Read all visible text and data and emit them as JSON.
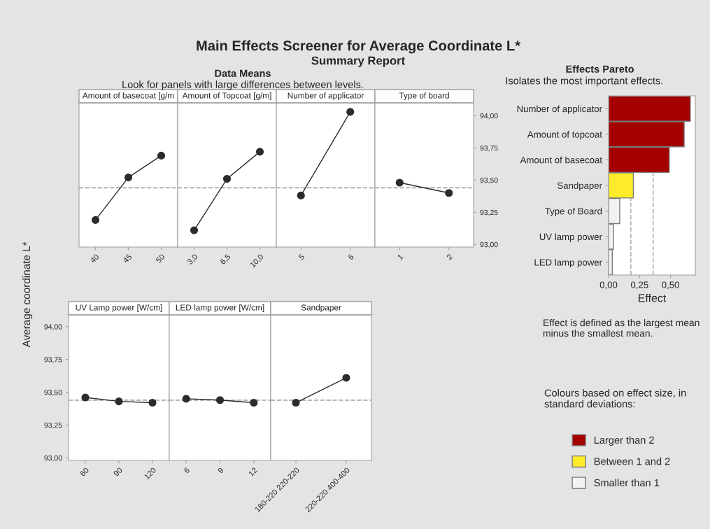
{
  "chart_data": [
    {
      "type": "line",
      "title": "Amount of basecoat [g/m",
      "annotations": [
        "Main Effects Screener for Average Coordinate L*",
        "Summary Report",
        "Data Means",
        "Look for panels with large differences between levels."
      ],
      "categories": [
        "40",
        "45",
        "50"
      ],
      "series": [
        {
          "color": "#2b2b2b",
          "values": [
            93.19,
            93.52,
            93.69
          ]
        }
      ],
      "ylim": [
        92.98,
        94.1
      ],
      "tick_labels": "x",
      "marker": "circle",
      "ref_lines": [
        {
          "axis": "y",
          "value": 93.44,
          "color": "#a6a6a6",
          "line_style": "dashed"
        }
      ]
    },
    {
      "type": "line",
      "title": "Amount of Topcoat [g/m]",
      "categories": [
        "3,0",
        "6,5",
        "10,0"
      ],
      "series": [
        {
          "color": "#2b2b2b",
          "values": [
            93.11,
            93.51,
            93.72
          ]
        }
      ],
      "ylim": [
        92.98,
        94.1
      ],
      "tick_labels": "x",
      "marker": "circle",
      "ref_lines": [
        {
          "axis": "y",
          "value": 93.44,
          "color": "#a6a6a6",
          "line_style": "dashed"
        }
      ]
    },
    {
      "type": "line",
      "title": "Number of applicator",
      "categories": [
        "5",
        "6"
      ],
      "series": [
        {
          "color": "#2b2b2b",
          "values": [
            93.38,
            94.03
          ]
        }
      ],
      "ylim": [
        92.98,
        94.1
      ],
      "tick_labels": "x",
      "marker": "circle",
      "ref_lines": [
        {
          "axis": "y",
          "value": 93.44,
          "color": "#a6a6a6",
          "line_style": "dashed"
        }
      ]
    },
    {
      "type": "line",
      "title": "Type of board",
      "categories": [
        "1",
        "2"
      ],
      "series": [
        {
          "color": "#2b2b2b",
          "values": [
            93.48,
            93.4
          ]
        }
      ],
      "ylim": [
        92.98,
        94.1
      ],
      "yticks": [
        {
          "value": 93.0,
          "label": "93,00"
        },
        {
          "value": 93.25,
          "label": "93,25"
        },
        {
          "value": 93.5,
          "label": "93,50"
        },
        {
          "value": 93.75,
          "label": "93,75"
        },
        {
          "value": 94.0,
          "label": "94,00"
        }
      ],
      "marker": "circle",
      "ref_lines": [
        {
          "axis": "y",
          "value": 93.44,
          "color": "#a6a6a6",
          "line_style": "dashed"
        }
      ]
    },
    {
      "type": "line",
      "title": "UV Lamp power [W/cm]",
      "ylabel": "Average coordinate L*",
      "categories": [
        "60",
        "90",
        "120"
      ],
      "series": [
        {
          "color": "#2b2b2b",
          "values": [
            93.46,
            93.43,
            93.42
          ]
        }
      ],
      "ylim": [
        92.98,
        94.09
      ],
      "yticks": [
        {
          "value": 93.0,
          "label": "93,00"
        },
        {
          "value": 93.25,
          "label": "93,25"
        },
        {
          "value": 93.5,
          "label": "93,50"
        },
        {
          "value": 93.75,
          "label": "93,75"
        },
        {
          "value": 94.0,
          "label": "94,00"
        }
      ],
      "marker": "circle",
      "ref_lines": [
        {
          "axis": "y",
          "value": 93.44,
          "color": "#a6a6a6",
          "line_style": "dashed"
        }
      ]
    },
    {
      "type": "line",
      "title": "LED lamp power [W/cm]",
      "categories": [
        "6",
        "9",
        "12"
      ],
      "series": [
        {
          "color": "#2b2b2b",
          "values": [
            93.45,
            93.44,
            93.42
          ]
        }
      ],
      "ylim": [
        92.98,
        94.09
      ],
      "tick_labels": "x",
      "marker": "circle",
      "ref_lines": [
        {
          "axis": "y",
          "value": 93.44,
          "color": "#a6a6a6",
          "line_style": "dashed"
        }
      ]
    },
    {
      "type": "line",
      "title": "Sandpaper",
      "categories": [
        "180-220 220-220",
        "220-220 400-400"
      ],
      "series": [
        {
          "color": "#2b2b2b",
          "values": [
            93.42,
            93.61
          ]
        }
      ],
      "ylim": [
        92.98,
        94.09
      ],
      "tick_labels": "x",
      "marker": "circle",
      "ref_lines": [
        {
          "axis": "y",
          "value": 93.44,
          "color": "#a6a6a6",
          "line_style": "dashed"
        }
      ]
    },
    {
      "type": "bar",
      "orientation": "horizontal",
      "stacked": true,
      "title": "Effects Pareto",
      "subtitle": "Isolates the most important effects.",
      "xlabel": "Effect",
      "annotations": [
        "Effect is defined as the largest mean minus the smallest mean."
      ],
      "categories": [
        "Number of applicator",
        "Amount of topcoat",
        "Amount of basecoat",
        "Sandpaper",
        "Type of Board",
        "UV lamp power",
        "LED lamp power"
      ],
      "series": [
        {
          "name": "Larger than 2",
          "color": "#a50000",
          "values": [
            0.66,
            0.61,
            0.49,
            null,
            null,
            null,
            null
          ]
        },
        {
          "name": "Between 1 and 2",
          "color": "#ffeb2a",
          "values": [
            null,
            null,
            null,
            0.2,
            null,
            null,
            null
          ]
        },
        {
          "name": "Smaller than 1",
          "color": "#f2f2f2",
          "values": [
            null,
            null,
            null,
            null,
            0.09,
            0.04,
            0.03
          ]
        }
      ],
      "xlim": [
        0,
        0.7
      ],
      "xticks": [
        {
          "value": 0,
          "label": "0,00"
        },
        {
          "value": 0.25,
          "label": "0,25"
        },
        {
          "value": 0.5,
          "label": "0,50"
        }
      ],
      "ref_lines": [
        {
          "axis": "x",
          "value": 0.18,
          "color": "#b3b3b3",
          "line_style": "dashed"
        },
        {
          "axis": "x",
          "value": 0.36,
          "color": "#b3b3b3",
          "line_style": "dashed"
        }
      ],
      "legend": "bottom",
      "legend_title": "Colours based on effect size, in standard deviations:"
    }
  ]
}
